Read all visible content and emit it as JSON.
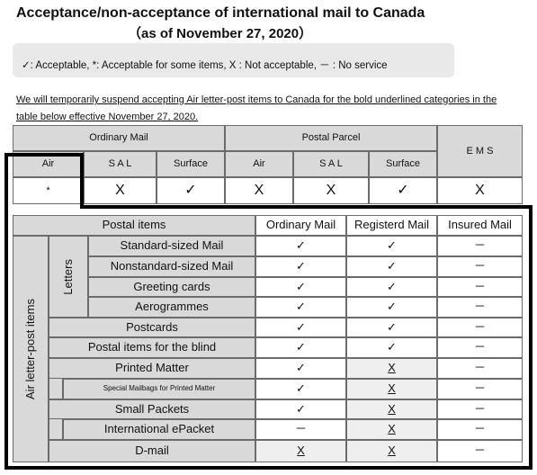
{
  "title": "Acceptance/non-acceptance of international mail to Canada",
  "subtitle": "（as of November 27, 2020）",
  "legend": "✓: Acceptable, *: Acceptable for some items, X : Not acceptable,  －  : No service",
  "notice": {
    "line1": "We will temporarily suspend accepting Air letter-post items to Canada for the bold underlined categories in the",
    "line2": "table below effective November 27, 2020."
  },
  "top_table": {
    "groups": {
      "ordinary": "Ordinary  Mail",
      "parcel": "Postal  Parcel",
      "ems": "E M S"
    },
    "sub": {
      "air": "Air",
      "sal": "S A L",
      "surface": "Surface"
    },
    "values": {
      "ordinary_air": "*",
      "ordinary_sal": "X",
      "ordinary_surface": "✓",
      "parcel_air": "X",
      "parcel_sal": "X",
      "parcel_surface": "✓",
      "ems": "X"
    }
  },
  "bottom_table": {
    "headers": {
      "postal_items": "Postal items",
      "ordinary": "Ordinary Mail",
      "registered": "Registerd Mail",
      "insured": "Insured Mail"
    },
    "air_letter_post_label": "Air letter-post items",
    "letters_label": "Letters",
    "rows": [
      {
        "name": "Standard-sized Mail",
        "ordinary": "✓",
        "registered": "✓",
        "insured": "－"
      },
      {
        "name": "Nonstandard-sized Mail",
        "ordinary": "✓",
        "registered": "✓",
        "insured": "－"
      },
      {
        "name": "Greeting cards",
        "ordinary": "✓",
        "registered": "✓",
        "insured": "－"
      },
      {
        "name": "Aerogrammes",
        "ordinary": "✓",
        "registered": "✓",
        "insured": "－"
      },
      {
        "name": "Postcards",
        "ordinary": "✓",
        "registered": "✓",
        "insured": "－"
      },
      {
        "name": "Postal items for the blind",
        "ordinary": "✓",
        "registered": "✓",
        "insured": "－"
      },
      {
        "name": "Printed Matter",
        "ordinary": "✓",
        "registered": "X",
        "insured": "－"
      },
      {
        "name": "Special Mailbags for Printed Matter",
        "ordinary": "✓",
        "registered": "X",
        "insured": "－"
      },
      {
        "name": "Small Packets",
        "ordinary": "✓",
        "registered": "X",
        "insured": "－"
      },
      {
        "name": "International ePacket",
        "ordinary": "－",
        "registered": "X",
        "insured": "－"
      },
      {
        "name": "D-mail",
        "ordinary": "X",
        "registered": "X",
        "insured": "－"
      }
    ]
  }
}
